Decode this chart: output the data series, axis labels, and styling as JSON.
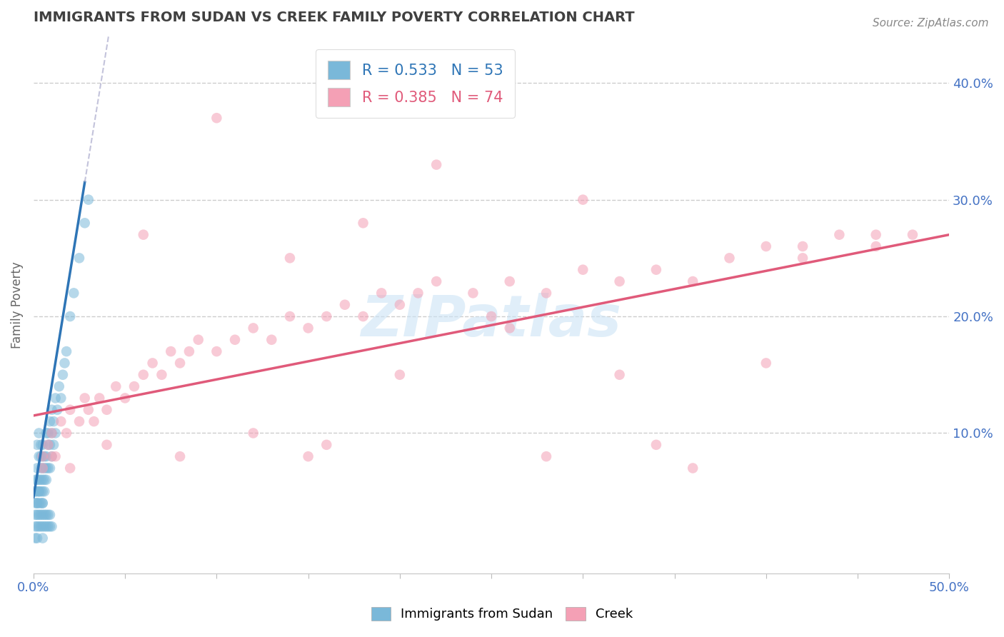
{
  "title": "IMMIGRANTS FROM SUDAN VS CREEK FAMILY POVERTY CORRELATION CHART",
  "source": "Source: ZipAtlas.com",
  "ylabel": "Family Poverty",
  "x_tick_labels": [
    "0.0%",
    "",
    "",
    "",
    "",
    "",
    "",
    "",
    "",
    "",
    "50.0%"
  ],
  "x_tick_positions": [
    0.0,
    0.05,
    0.1,
    0.15,
    0.2,
    0.25,
    0.3,
    0.35,
    0.4,
    0.45,
    0.5
  ],
  "y_tick_labels": [
    "10.0%",
    "20.0%",
    "30.0%",
    "40.0%"
  ],
  "y_tick_positions": [
    0.1,
    0.2,
    0.3,
    0.4
  ],
  "xlim": [
    0,
    0.5
  ],
  "ylim": [
    -0.02,
    0.44
  ],
  "blue_color": "#7ab8d9",
  "pink_color": "#f4a0b5",
  "blue_line_color": "#2e75b6",
  "pink_line_color": "#e05a7a",
  "blue_R": 0.533,
  "blue_N": 53,
  "pink_R": 0.385,
  "pink_N": 74,
  "blue_label": "Immigrants from Sudan",
  "pink_label": "Creek",
  "watermark": "ZIPatlas",
  "tick_label_color": "#4472c4",
  "title_color": "#404040",
  "grid_color": "#cccccc",
  "blue_scatter_x": [
    0.001,
    0.001,
    0.002,
    0.002,
    0.002,
    0.002,
    0.003,
    0.003,
    0.003,
    0.003,
    0.004,
    0.004,
    0.004,
    0.004,
    0.004,
    0.005,
    0.005,
    0.005,
    0.005,
    0.005,
    0.005,
    0.006,
    0.006,
    0.006,
    0.006,
    0.007,
    0.007,
    0.007,
    0.007,
    0.008,
    0.008,
    0.008,
    0.009,
    0.009,
    0.009,
    0.01,
    0.01,
    0.01,
    0.011,
    0.011,
    0.012,
    0.012,
    0.013,
    0.014,
    0.015,
    0.016,
    0.017,
    0.018,
    0.02,
    0.022,
    0.025,
    0.028,
    0.03
  ],
  "blue_scatter_y": [
    0.05,
    0.06,
    0.04,
    0.06,
    0.07,
    0.09,
    0.05,
    0.06,
    0.08,
    0.1,
    0.05,
    0.06,
    0.07,
    0.08,
    0.09,
    0.04,
    0.05,
    0.06,
    0.07,
    0.08,
    0.09,
    0.05,
    0.06,
    0.07,
    0.08,
    0.06,
    0.07,
    0.08,
    0.1,
    0.07,
    0.09,
    0.1,
    0.07,
    0.09,
    0.11,
    0.08,
    0.1,
    0.12,
    0.09,
    0.11,
    0.1,
    0.13,
    0.12,
    0.14,
    0.13,
    0.15,
    0.16,
    0.17,
    0.2,
    0.22,
    0.25,
    0.28,
    0.3
  ],
  "blue_scatter_x_low": [
    0.001,
    0.001,
    0.001,
    0.001,
    0.001,
    0.002,
    0.002,
    0.002,
    0.002,
    0.002,
    0.003,
    0.003,
    0.003,
    0.003,
    0.004,
    0.004,
    0.004,
    0.005,
    0.005,
    0.005,
    0.005,
    0.006,
    0.006,
    0.007,
    0.007,
    0.008,
    0.008,
    0.009,
    0.009,
    0.01
  ],
  "blue_scatter_y_low": [
    0.01,
    0.02,
    0.03,
    0.04,
    0.05,
    0.01,
    0.02,
    0.03,
    0.04,
    0.05,
    0.02,
    0.03,
    0.04,
    0.05,
    0.02,
    0.03,
    0.04,
    0.01,
    0.02,
    0.03,
    0.04,
    0.02,
    0.03,
    0.02,
    0.03,
    0.02,
    0.03,
    0.02,
    0.03,
    0.02
  ],
  "pink_scatter_x": [
    0.005,
    0.008,
    0.01,
    0.012,
    0.015,
    0.018,
    0.02,
    0.025,
    0.028,
    0.03,
    0.033,
    0.036,
    0.04,
    0.045,
    0.05,
    0.055,
    0.06,
    0.065,
    0.07,
    0.075,
    0.08,
    0.085,
    0.09,
    0.1,
    0.11,
    0.12,
    0.13,
    0.14,
    0.15,
    0.16,
    0.17,
    0.18,
    0.19,
    0.2,
    0.21,
    0.22,
    0.24,
    0.26,
    0.28,
    0.3,
    0.32,
    0.34,
    0.36,
    0.38,
    0.4,
    0.42,
    0.44,
    0.46,
    0.005,
    0.01,
    0.02,
    0.04,
    0.08,
    0.12,
    0.16,
    0.2,
    0.28,
    0.36,
    0.4,
    0.48,
    0.1,
    0.22,
    0.3,
    0.18,
    0.06,
    0.14,
    0.26,
    0.34,
    0.42,
    0.46,
    0.32,
    0.2,
    0.15,
    0.25
  ],
  "pink_scatter_y": [
    0.08,
    0.09,
    0.1,
    0.08,
    0.11,
    0.1,
    0.12,
    0.11,
    0.13,
    0.12,
    0.11,
    0.13,
    0.12,
    0.14,
    0.13,
    0.14,
    0.15,
    0.16,
    0.15,
    0.17,
    0.16,
    0.17,
    0.18,
    0.17,
    0.18,
    0.19,
    0.18,
    0.2,
    0.19,
    0.2,
    0.21,
    0.2,
    0.22,
    0.21,
    0.22,
    0.23,
    0.22,
    0.23,
    0.22,
    0.24,
    0.23,
    0.24,
    0.23,
    0.25,
    0.26,
    0.25,
    0.27,
    0.26,
    0.07,
    0.08,
    0.07,
    0.09,
    0.08,
    0.1,
    0.09,
    0.15,
    0.08,
    0.07,
    0.16,
    0.27,
    0.37,
    0.33,
    0.3,
    0.28,
    0.27,
    0.25,
    0.19,
    0.09,
    0.26,
    0.27,
    0.15,
    0.38,
    0.08,
    0.2
  ],
  "blue_trend_x0": 0.0,
  "blue_trend_y0": 0.045,
  "blue_trend_x1": 0.028,
  "blue_trend_y1": 0.315,
  "pink_trend_x0": 0.0,
  "pink_trend_y0": 0.115,
  "pink_trend_x1": 0.5,
  "pink_trend_y1": 0.27
}
